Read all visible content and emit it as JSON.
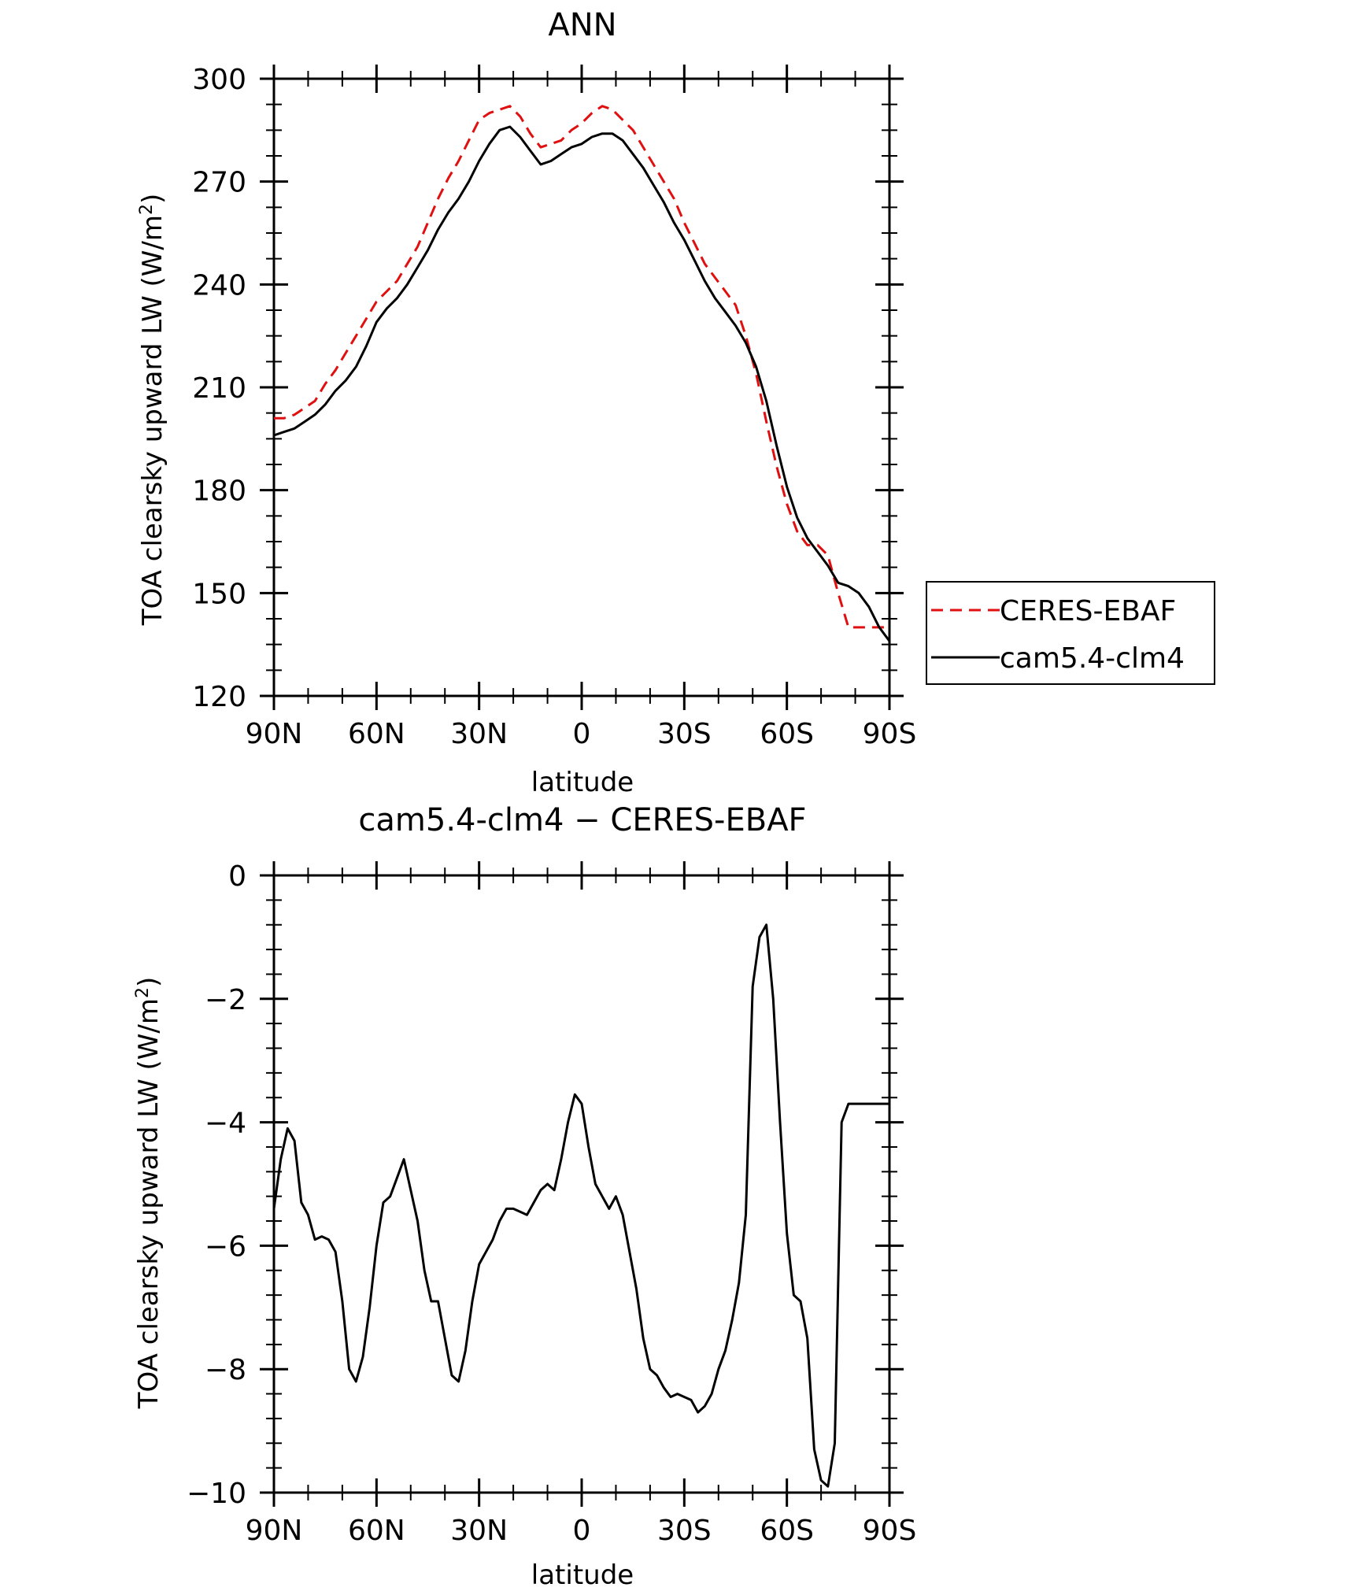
{
  "chart_data": [
    {
      "type": "line",
      "title": "ANN",
      "xlabel": "latitude",
      "ylabel": "TOA clearsky upward LW (W/m²)",
      "ylabel_main": "TOA clearsky upward LW (W/m",
      "ylabel_sup": "2",
      "ylabel_close": ")",
      "xlim": [
        90,
        -90
      ],
      "ylim": [
        120,
        300
      ],
      "x_ticks": [
        90,
        60,
        30,
        0,
        -30,
        -60,
        -90
      ],
      "x_tick_labels": [
        "90N",
        "60N",
        "30N",
        "0",
        "30S",
        "60S",
        "90S"
      ],
      "y_ticks": [
        120,
        150,
        180,
        210,
        240,
        270,
        300
      ],
      "y_tick_labels": [
        "120",
        "150",
        "180",
        "210",
        "240",
        "270",
        "300"
      ],
      "legend": {
        "position": "right",
        "entries": [
          "CERES-EBAF",
          "cam5.4-clm4"
        ]
      },
      "series": [
        {
          "name": "CERES-EBAF",
          "color": "#e01010",
          "dash": "dashed",
          "x": [
            90,
            87,
            84,
            81,
            78,
            75,
            72,
            69,
            66,
            63,
            60,
            57,
            54,
            51,
            48,
            45,
            42,
            39,
            36,
            33,
            30,
            27,
            24,
            21,
            18,
            15,
            12,
            9,
            6,
            3,
            0,
            -3,
            -6,
            -9,
            -12,
            -15,
            -18,
            -21,
            -24,
            -27,
            -30,
            -33,
            -36,
            -39,
            -42,
            -45,
            -48,
            -51,
            -54,
            -57,
            -60,
            -63,
            -66,
            -69,
            -72,
            -75,
            -78,
            -81,
            -84,
            -87,
            -90
          ],
          "values": [
            201,
            201,
            202,
            204,
            206,
            211,
            215,
            220,
            225,
            230,
            235,
            238,
            241,
            246,
            251,
            258,
            265,
            271,
            276,
            282,
            288,
            290,
            291,
            292,
            289,
            284,
            280,
            281,
            282,
            285,
            287,
            290,
            292,
            291,
            288,
            285,
            280,
            275,
            270,
            265,
            258,
            252,
            246,
            242,
            238,
            234,
            225,
            214,
            200,
            187,
            176,
            168,
            164,
            164,
            161,
            150,
            140,
            140,
            140,
            140,
            140
          ]
        },
        {
          "name": "cam5.4-clm4",
          "color": "#000000",
          "dash": "solid",
          "x": [
            90,
            87,
            84,
            81,
            78,
            75,
            72,
            69,
            66,
            63,
            60,
            57,
            54,
            51,
            48,
            45,
            42,
            39,
            36,
            33,
            30,
            27,
            24,
            21,
            18,
            15,
            12,
            9,
            6,
            3,
            0,
            -3,
            -6,
            -9,
            -12,
            -15,
            -18,
            -21,
            -24,
            -27,
            -30,
            -33,
            -36,
            -39,
            -42,
            -45,
            -48,
            -51,
            -54,
            -57,
            -60,
            -63,
            -66,
            -69,
            -72,
            -75,
            -78,
            -81,
            -84,
            -87,
            -90
          ],
          "values": [
            196,
            197,
            198,
            200,
            202,
            205,
            209,
            212,
            216,
            222,
            229,
            233,
            236,
            240,
            245,
            250,
            256,
            261,
            265,
            270,
            276,
            281,
            285,
            286,
            283,
            279,
            275,
            276,
            278,
            280,
            281,
            283,
            284,
            284,
            282,
            278,
            274,
            269,
            264,
            258,
            253,
            247,
            241,
            236,
            232,
            228,
            223,
            216,
            206,
            193,
            181,
            172,
            166,
            162,
            158,
            153,
            152,
            150,
            146,
            140,
            136
          ]
        }
      ]
    },
    {
      "type": "line",
      "title": "cam5.4-clm4 − CERES-EBAF",
      "xlabel": "latitude",
      "ylabel": "TOA clearsky upward LW (W/m²)",
      "ylabel_main": "TOA clearsky upward LW (W/m",
      "ylabel_sup": "2",
      "ylabel_close": ")",
      "xlim": [
        90,
        -90
      ],
      "ylim": [
        -10,
        0
      ],
      "x_ticks": [
        90,
        60,
        30,
        0,
        -30,
        -60,
        -90
      ],
      "x_tick_labels": [
        "90N",
        "60N",
        "30N",
        "0",
        "30S",
        "60S",
        "90S"
      ],
      "y_ticks": [
        -10,
        -8,
        -6,
        -4,
        -2,
        0
      ],
      "y_tick_labels": [
        "−10",
        "−8",
        "−6",
        "−4",
        "−2",
        "0"
      ],
      "series": [
        {
          "name": "cam5.4-clm4 − CERES-EBAF",
          "color": "#000000",
          "dash": "solid",
          "x": [
            90,
            88,
            86,
            84,
            82,
            80,
            78,
            76,
            74,
            72,
            70,
            68,
            66,
            64,
            62,
            60,
            58,
            56,
            54,
            52,
            50,
            48,
            46,
            44,
            42,
            40,
            38,
            36,
            34,
            32,
            30,
            28,
            26,
            24,
            22,
            20,
            18,
            16,
            14,
            12,
            10,
            8,
            6,
            4,
            2,
            0,
            -2,
            -4,
            -6,
            -8,
            -10,
            -12,
            -14,
            -16,
            -18,
            -20,
            -22,
            -24,
            -26,
            -28,
            -30,
            -32,
            -34,
            -36,
            -38,
            -40,
            -42,
            -44,
            -46,
            -48,
            -50,
            -52,
            -54,
            -56,
            -58,
            -60,
            -62,
            -64,
            -66,
            -68,
            -70,
            -72,
            -74,
            -76,
            -78,
            -80,
            -82,
            -84,
            -86,
            -88,
            -90
          ],
          "values": [
            -5.4,
            -4.6,
            -4.1,
            -4.3,
            -5.3,
            -5.5,
            -5.9,
            -5.85,
            -5.9,
            -6.1,
            -6.9,
            -8.0,
            -8.2,
            -7.8,
            -7.0,
            -6.0,
            -5.3,
            -5.2,
            -4.9,
            -4.6,
            -5.1,
            -5.6,
            -6.4,
            -6.9,
            -6.9,
            -7.5,
            -8.1,
            -8.2,
            -7.7,
            -6.9,
            -6.3,
            -6.1,
            -5.9,
            -5.6,
            -5.4,
            -5.4,
            -5.45,
            -5.5,
            -5.3,
            -5.1,
            -5.0,
            -5.1,
            -4.6,
            -4.0,
            -3.55,
            -3.7,
            -4.4,
            -5.0,
            -5.2,
            -5.4,
            -5.2,
            -5.5,
            -6.1,
            -6.7,
            -7.5,
            -8.0,
            -8.1,
            -8.3,
            -8.45,
            -8.4,
            -8.45,
            -8.5,
            -8.7,
            -8.6,
            -8.4,
            -8.0,
            -7.7,
            -7.2,
            -6.6,
            -5.5,
            -1.8,
            -1.0,
            -0.8,
            -2.0,
            -4.0,
            -5.8,
            -6.8,
            -6.9,
            -7.5,
            -9.3,
            -9.8,
            -9.9,
            -9.2,
            -4.0,
            -3.7,
            -3.7,
            -3.7,
            -3.7,
            -3.7,
            -3.7,
            -3.7
          ]
        }
      ]
    }
  ]
}
